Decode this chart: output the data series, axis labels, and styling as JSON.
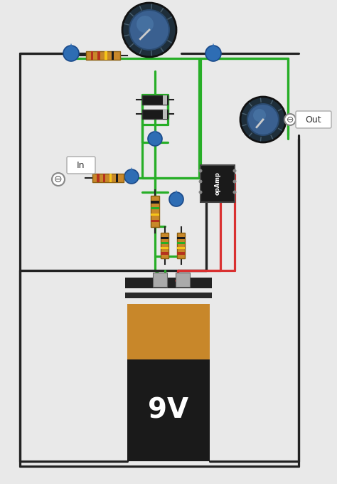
{
  "bg_color": "#e9e9e9",
  "wire_black": "#222222",
  "wire_green": "#27ae27",
  "wire_red": "#d93030",
  "battery_orange": "#c8872a",
  "battery_black": "#1a1a1a",
  "battery_label": "9V",
  "knob_outer": "#2c3e50",
  "knob_mid": "#3d566e",
  "knob_face": "#4a7ab5",
  "diode_body": "#1a1a1a",
  "diode_band": "#aaaaaa",
  "opamp_body": "#1a1a1a",
  "resistor_body": "#c8882a",
  "cap_color": "#2e6db4",
  "label_in": "In",
  "label_out": "Out",
  "label_9v": "9V"
}
